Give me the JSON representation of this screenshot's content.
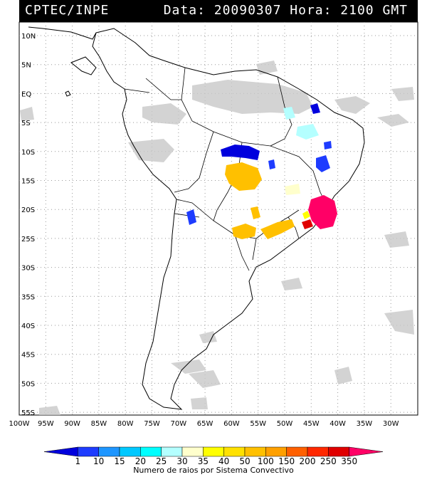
{
  "header": {
    "source": "CPTEC/INPE",
    "datetime": "Data: 20090307 Hora: 2100 GMT"
  },
  "axes": {
    "lat_labels": [
      "10N",
      "5N",
      "EQ",
      "5S",
      "10S",
      "15S",
      "20S",
      "25S",
      "30S",
      "35S",
      "40S",
      "45S",
      "50S",
      "55S"
    ],
    "lon_labels": [
      "100W",
      "95W",
      "90W",
      "85W",
      "80W",
      "75W",
      "70W",
      "65W",
      "60W",
      "55W",
      "50W",
      "45W",
      "40W",
      "35W",
      "30W"
    ]
  },
  "legend": {
    "title": "Numero de raios por Sistema Convectivo",
    "labels": [
      "1",
      "10",
      "15",
      "20",
      "25",
      "30",
      "35",
      "40",
      "50",
      "100",
      "150",
      "200",
      "250",
      "350"
    ],
    "colors": [
      "#0000dd",
      "#1e3cff",
      "#1e96ff",
      "#00c8ff",
      "#00ffff",
      "#b4ffff",
      "#ffffcc",
      "#ffff00",
      "#ffe100",
      "#ffc000",
      "#ffa000",
      "#ff6000",
      "#ff2800",
      "#e00000",
      "#ff0066"
    ]
  },
  "map": {
    "colors": {
      "land_border": "#000000",
      "gridline": "#999999",
      "cloud": "#c8c8c8"
    }
  }
}
